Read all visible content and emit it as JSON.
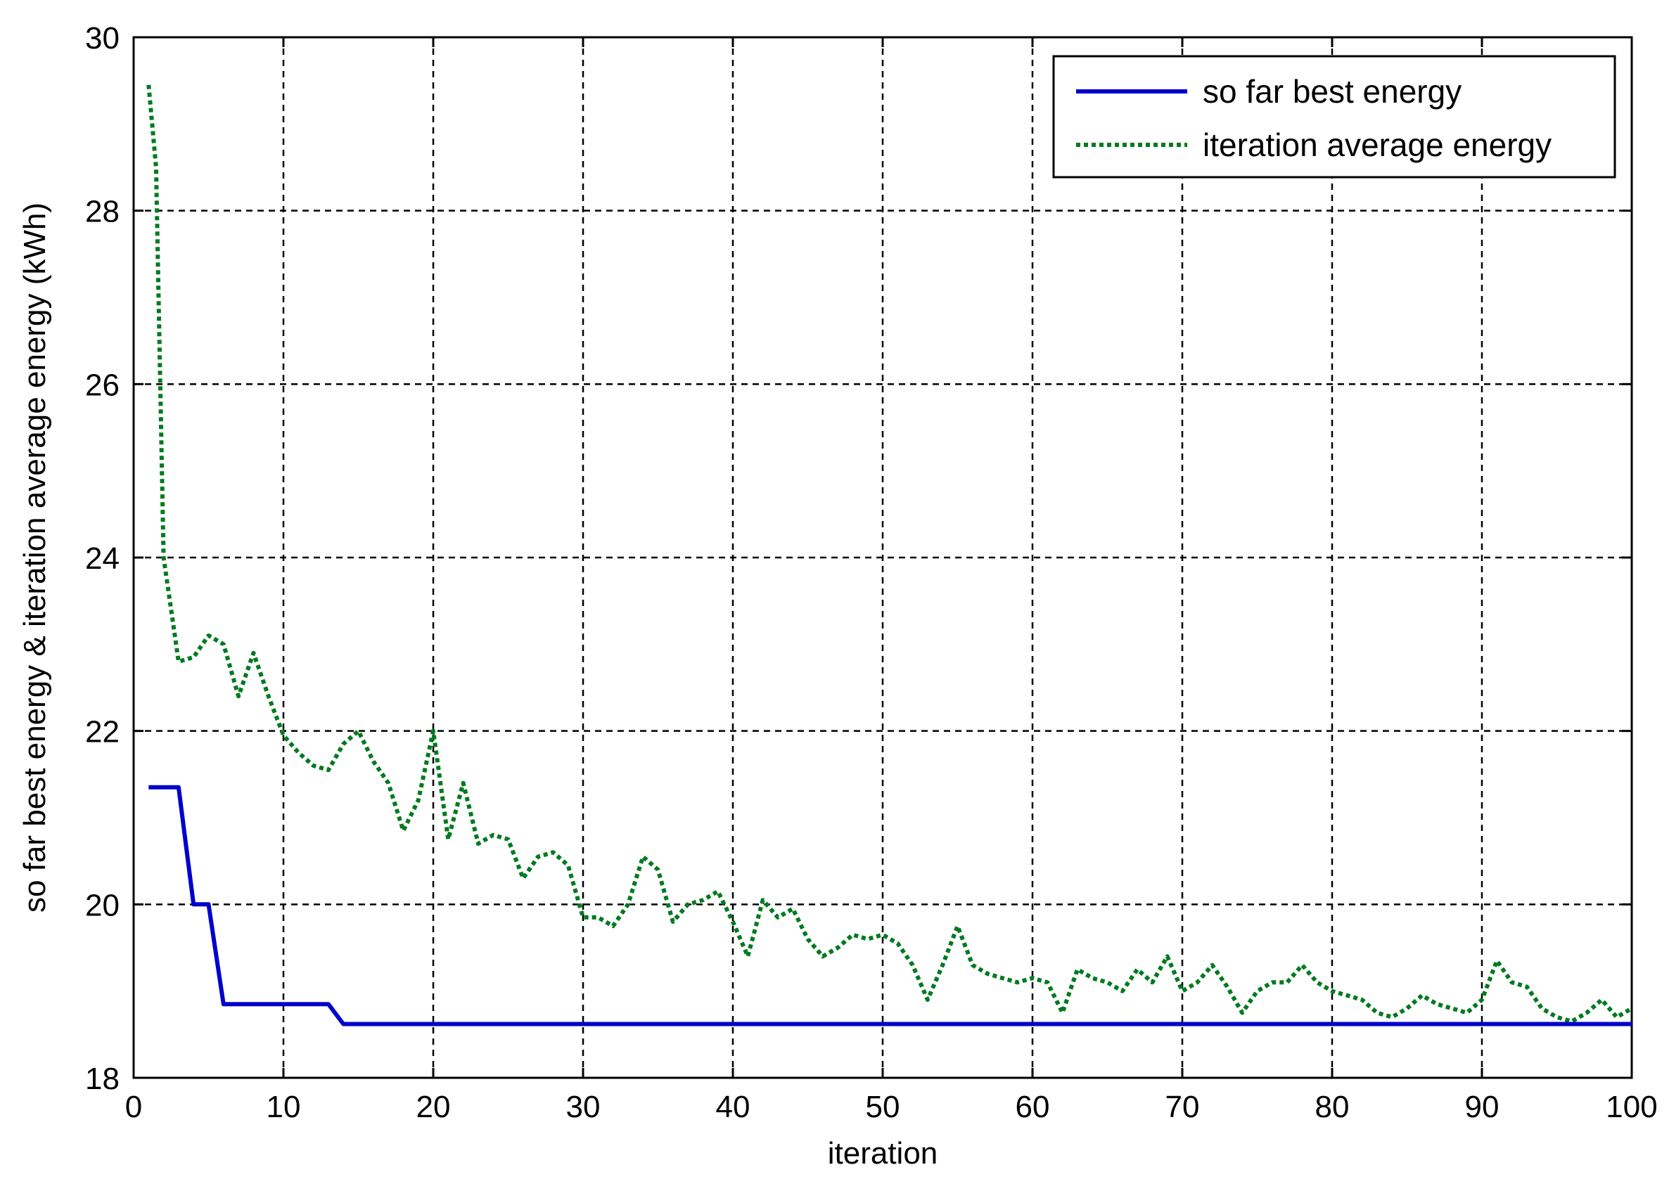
{
  "chart_data": {
    "type": "line",
    "title": "",
    "xlabel": "iteration",
    "ylabel": "so far best energy & iteration average energy (kWh)",
    "xlim": [
      0,
      100
    ],
    "ylim": [
      18,
      30
    ],
    "xticks": [
      0,
      10,
      20,
      30,
      40,
      50,
      60,
      70,
      80,
      90,
      100
    ],
    "yticks": [
      18,
      20,
      22,
      24,
      26,
      28,
      30
    ],
    "grid": true,
    "legend_position": "top-right",
    "series": [
      {
        "name": "so far best energy",
        "color": "#0000cc",
        "style": "solid",
        "points": [
          [
            1,
            21.35
          ],
          [
            2,
            21.35
          ],
          [
            3,
            21.35
          ],
          [
            4,
            20
          ],
          [
            5,
            20
          ],
          [
            6,
            18.85
          ],
          [
            7,
            18.85
          ],
          [
            8,
            18.85
          ],
          [
            9,
            18.85
          ],
          [
            10,
            18.85
          ],
          [
            11,
            18.85
          ],
          [
            12,
            18.85
          ],
          [
            13,
            18.85
          ],
          [
            14,
            18.62
          ],
          [
            20,
            18.62
          ],
          [
            30,
            18.62
          ],
          [
            40,
            18.62
          ],
          [
            50,
            18.62
          ],
          [
            60,
            18.62
          ],
          [
            70,
            18.62
          ],
          [
            80,
            18.62
          ],
          [
            90,
            18.62
          ],
          [
            100,
            18.62
          ]
        ]
      },
      {
        "name": "iteration average energy",
        "color": "#007a1f",
        "style": "dotted",
        "points": [
          [
            1,
            29.45
          ],
          [
            1.5,
            28.5
          ],
          [
            2,
            24
          ],
          [
            2.5,
            23.4
          ],
          [
            3,
            22.8
          ],
          [
            4,
            22.85
          ],
          [
            5,
            23.1
          ],
          [
            6,
            23
          ],
          [
            7,
            22.4
          ],
          [
            8,
            22.9
          ],
          [
            9,
            22.4
          ],
          [
            10,
            21.95
          ],
          [
            11,
            21.75
          ],
          [
            12,
            21.6
          ],
          [
            13,
            21.55
          ],
          [
            14,
            21.85
          ],
          [
            15,
            22
          ],
          [
            16,
            21.65
          ],
          [
            17,
            21.4
          ],
          [
            18,
            20.85
          ],
          [
            19,
            21.2
          ],
          [
            20,
            22
          ],
          [
            21,
            20.75
          ],
          [
            22,
            21.4
          ],
          [
            23,
            20.7
          ],
          [
            24,
            20.8
          ],
          [
            25,
            20.75
          ],
          [
            26,
            20.3
          ],
          [
            27,
            20.55
          ],
          [
            28,
            20.6
          ],
          [
            29,
            20.45
          ],
          [
            30,
            19.85
          ],
          [
            31,
            19.85
          ],
          [
            32,
            19.75
          ],
          [
            33,
            20
          ],
          [
            34,
            20.55
          ],
          [
            35,
            20.4
          ],
          [
            36,
            19.8
          ],
          [
            37,
            20
          ],
          [
            38,
            20.05
          ],
          [
            39,
            20.15
          ],
          [
            40,
            19.8
          ],
          [
            41,
            19.4
          ],
          [
            42,
            20.05
          ],
          [
            43,
            19.85
          ],
          [
            44,
            19.95
          ],
          [
            45,
            19.6
          ],
          [
            46,
            19.4
          ],
          [
            47,
            19.5
          ],
          [
            48,
            19.65
          ],
          [
            49,
            19.6
          ],
          [
            50,
            19.65
          ],
          [
            51,
            19.55
          ],
          [
            52,
            19.3
          ],
          [
            53,
            18.9
          ],
          [
            54,
            19.3
          ],
          [
            55,
            19.75
          ],
          [
            56,
            19.3
          ],
          [
            57,
            19.2
          ],
          [
            58,
            19.15
          ],
          [
            59,
            19.1
          ],
          [
            60,
            19.15
          ],
          [
            61,
            19.1
          ],
          [
            62,
            18.75
          ],
          [
            63,
            19.25
          ],
          [
            64,
            19.15
          ],
          [
            65,
            19.1
          ],
          [
            66,
            19
          ],
          [
            67,
            19.25
          ],
          [
            68,
            19.1
          ],
          [
            69,
            19.4
          ],
          [
            70,
            19
          ],
          [
            71,
            19.1
          ],
          [
            72,
            19.3
          ],
          [
            73,
            19.05
          ],
          [
            74,
            18.75
          ],
          [
            75,
            19
          ],
          [
            76,
            19.1
          ],
          [
            77,
            19.1
          ],
          [
            78,
            19.3
          ],
          [
            79,
            19.1
          ],
          [
            80,
            19
          ],
          [
            81,
            18.95
          ],
          [
            82,
            18.9
          ],
          [
            83,
            18.75
          ],
          [
            84,
            18.7
          ],
          [
            85,
            18.8
          ],
          [
            86,
            18.95
          ],
          [
            87,
            18.85
          ],
          [
            88,
            18.8
          ],
          [
            89,
            18.75
          ],
          [
            90,
            18.9
          ],
          [
            91,
            19.35
          ],
          [
            92,
            19.1
          ],
          [
            93,
            19.05
          ],
          [
            94,
            18.8
          ],
          [
            95,
            18.7
          ],
          [
            96,
            18.65
          ],
          [
            97,
            18.75
          ],
          [
            98,
            18.9
          ],
          [
            99,
            18.7
          ],
          [
            100,
            18.8
          ]
        ]
      }
    ]
  }
}
